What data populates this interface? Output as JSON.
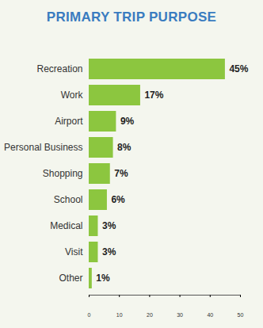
{
  "chart_data": {
    "type": "bar",
    "title": "PRIMARY TRIP PURPOSE",
    "orientation": "horizontal",
    "categories": [
      "Recreation",
      "Work",
      "Airport",
      "Personal Business",
      "Shopping",
      "School",
      "Medical",
      "Visit",
      "Other"
    ],
    "values": [
      45,
      17,
      9,
      8,
      7,
      6,
      3,
      3,
      1
    ],
    "value_labels": [
      "45%",
      "17%",
      "9%",
      "8%",
      "7%",
      "6%",
      "3%",
      "3%",
      "1%"
    ],
    "color": "#8cc63f",
    "data_labels": true,
    "grid": false,
    "xlim": [
      0,
      50
    ],
    "xticks": [
      0,
      10,
      20,
      30,
      40,
      50
    ]
  }
}
